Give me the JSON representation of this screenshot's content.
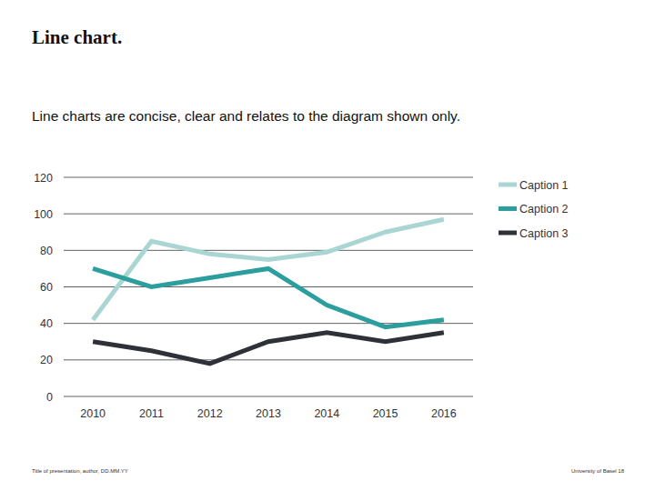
{
  "chart_data": {
    "type": "line",
    "title": "Line chart.",
    "subtitle": "Line charts are concise, clear and relates to the diagram shown only.",
    "categories": [
      "2010",
      "2011",
      "2012",
      "2013",
      "2014",
      "2015",
      "2016"
    ],
    "series": [
      {
        "name": "Caption 1",
        "color": "#a9d6d2",
        "values": [
          42,
          85,
          78,
          75,
          79,
          90,
          97
        ]
      },
      {
        "name": "Caption 2",
        "color": "#2b9e9d",
        "values": [
          70,
          60,
          65,
          70,
          50,
          38,
          42
        ]
      },
      {
        "name": "Caption 3",
        "color": "#2e3238",
        "values": [
          30,
          25,
          18,
          30,
          35,
          30,
          35
        ]
      }
    ],
    "ylim": [
      0,
      120
    ],
    "yticks": [
      0,
      20,
      40,
      60,
      80,
      100,
      120
    ],
    "grid": true,
    "legend": "right",
    "annotations": [
      "Title of presentation, author, DD.MM.YY",
      "University of Basel 18"
    ]
  }
}
